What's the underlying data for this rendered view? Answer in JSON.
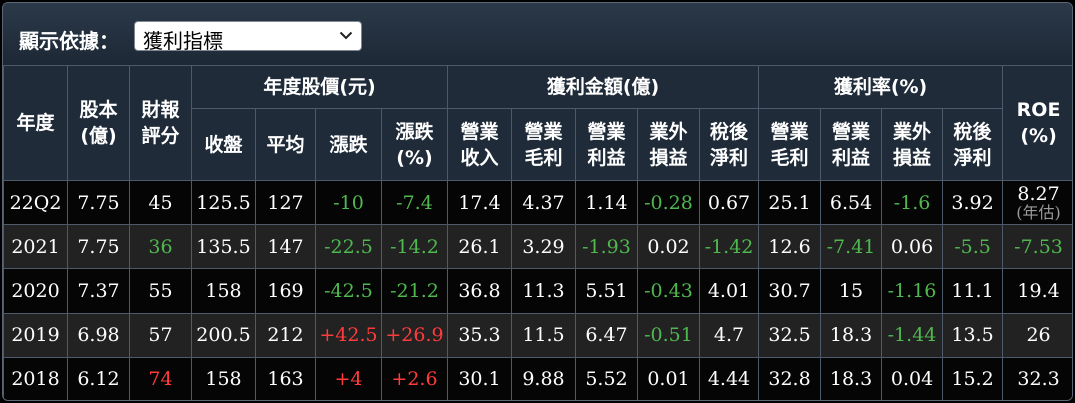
{
  "toolbar": {
    "label": "顯示依據：",
    "select_value": "獲利指標"
  },
  "headers": {
    "year": "年度",
    "capital": "股本(億)",
    "rating": "財報評分",
    "price_group": "年度股價(元)",
    "profit_group": "獲利金額(億)",
    "rate_group": "獲利率(%)",
    "roe": "ROE(%)",
    "close": "收盤",
    "avg": "平均",
    "change": "漲跌",
    "change_pct": "漲跌(%)",
    "revenue": "營業收入",
    "gross": "營業毛利",
    "op_income": "營業利益",
    "non_op": "業外損益",
    "net": "稅後淨利",
    "gross_rate": "營業毛利",
    "op_rate": "營業利益",
    "non_op_rate": "業外損益",
    "net_rate": "稅後淨利"
  },
  "rows": [
    {
      "year": "22Q2",
      "capital": "7.75",
      "rating": "45",
      "close": "125.5",
      "avg": "127",
      "change": "-10",
      "change_pct": "-7.4",
      "revenue": "17.4",
      "gross": "4.37",
      "op_income": "1.14",
      "non_op": "-0.28",
      "net": "0.67",
      "gross_rate": "25.1",
      "op_rate": "6.54",
      "non_op_rate": "-1.6",
      "net_rate": "3.92",
      "roe": "8.27",
      "roe_note": "(年估)"
    },
    {
      "year": "2021",
      "capital": "7.75",
      "rating": "36",
      "close": "135.5",
      "avg": "147",
      "change": "-22.5",
      "change_pct": "-14.2",
      "revenue": "26.1",
      "gross": "3.29",
      "op_income": "-1.93",
      "non_op": "0.02",
      "net": "-1.42",
      "gross_rate": "12.6",
      "op_rate": "-7.41",
      "non_op_rate": "0.06",
      "net_rate": "-5.5",
      "roe": "-7.53",
      "roe_note": ""
    },
    {
      "year": "2020",
      "capital": "7.37",
      "rating": "55",
      "close": "158",
      "avg": "169",
      "change": "-42.5",
      "change_pct": "-21.2",
      "revenue": "36.8",
      "gross": "11.3",
      "op_income": "5.51",
      "non_op": "-0.43",
      "net": "4.01",
      "gross_rate": "30.7",
      "op_rate": "15",
      "non_op_rate": "-1.16",
      "net_rate": "11.1",
      "roe": "19.4",
      "roe_note": ""
    },
    {
      "year": "2019",
      "capital": "6.98",
      "rating": "57",
      "close": "200.5",
      "avg": "212",
      "change": "+42.5",
      "change_pct": "+26.9",
      "revenue": "35.3",
      "gross": "11.5",
      "op_income": "6.47",
      "non_op": "-0.51",
      "net": "4.7",
      "gross_rate": "32.5",
      "op_rate": "18.3",
      "non_op_rate": "-1.44",
      "net_rate": "13.5",
      "roe": "26",
      "roe_note": ""
    },
    {
      "year": "2018",
      "capital": "6.12",
      "rating": "74",
      "close": "158",
      "avg": "163",
      "change": "+4",
      "change_pct": "+2.6",
      "revenue": "30.1",
      "gross": "9.88",
      "op_income": "5.52",
      "non_op": "0.01",
      "net": "4.44",
      "gross_rate": "32.8",
      "op_rate": "18.3",
      "non_op_rate": "0.04",
      "net_rate": "15.2",
      "roe": "32.3",
      "roe_note": ""
    }
  ],
  "colors": {
    "negative": "#4fb84f",
    "positive": "#ff3b3b",
    "rating_low": "#4fb84f",
    "rating_high": "#ff3b3b"
  },
  "icons": {
    "select_arrow": "chevron-down-icon"
  }
}
